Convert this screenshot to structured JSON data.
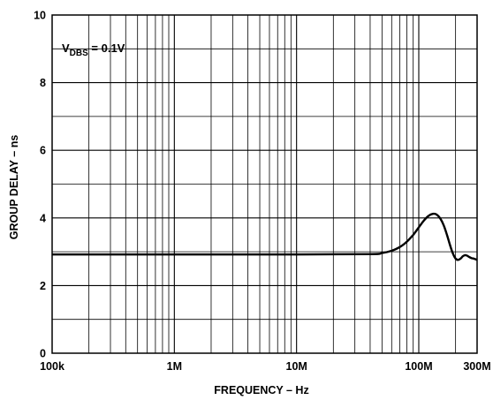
{
  "chart_data": {
    "type": "line",
    "title": "",
    "xlabel": "FREQUENCY – Hz",
    "ylabel": "GROUP DELAY – ns",
    "x_scale": "log",
    "xlim": [
      100000,
      300000000
    ],
    "ylim": [
      0,
      10
    ],
    "grid": true,
    "x_tick_values": [
      100000,
      1000000,
      10000000,
      100000000,
      300000000
    ],
    "x_tick_labels": [
      "100k",
      "1M",
      "10M",
      "100M",
      "300M"
    ],
    "y_tick_values": [
      0,
      2,
      4,
      6,
      8,
      10
    ],
    "y_tick_labels": [
      "0",
      "2",
      "4",
      "6",
      "8",
      "10"
    ],
    "annotation": {
      "main": "V",
      "subscript": "DBS",
      "suffix": " = 0.1V"
    },
    "series": [
      {
        "color": "#000000",
        "x": [
          100000,
          1000000,
          10000000,
          40000000,
          50000000,
          60000000,
          70000000,
          80000000,
          90000000,
          100000000,
          110000000,
          120000000,
          130000000,
          140000000,
          150000000,
          160000000,
          170000000,
          180000000,
          190000000,
          200000000,
          210000000,
          220000000,
          230000000,
          240000000,
          250000000,
          260000000,
          270000000,
          280000000,
          290000000,
          300000000
        ],
        "y": [
          2.92,
          2.92,
          2.92,
          2.93,
          2.96,
          3.03,
          3.14,
          3.3,
          3.5,
          3.72,
          3.92,
          4.06,
          4.12,
          4.1,
          3.98,
          3.78,
          3.5,
          3.2,
          2.95,
          2.8,
          2.76,
          2.8,
          2.87,
          2.9,
          2.88,
          2.84,
          2.81,
          2.8,
          2.78,
          2.76
        ]
      }
    ]
  }
}
